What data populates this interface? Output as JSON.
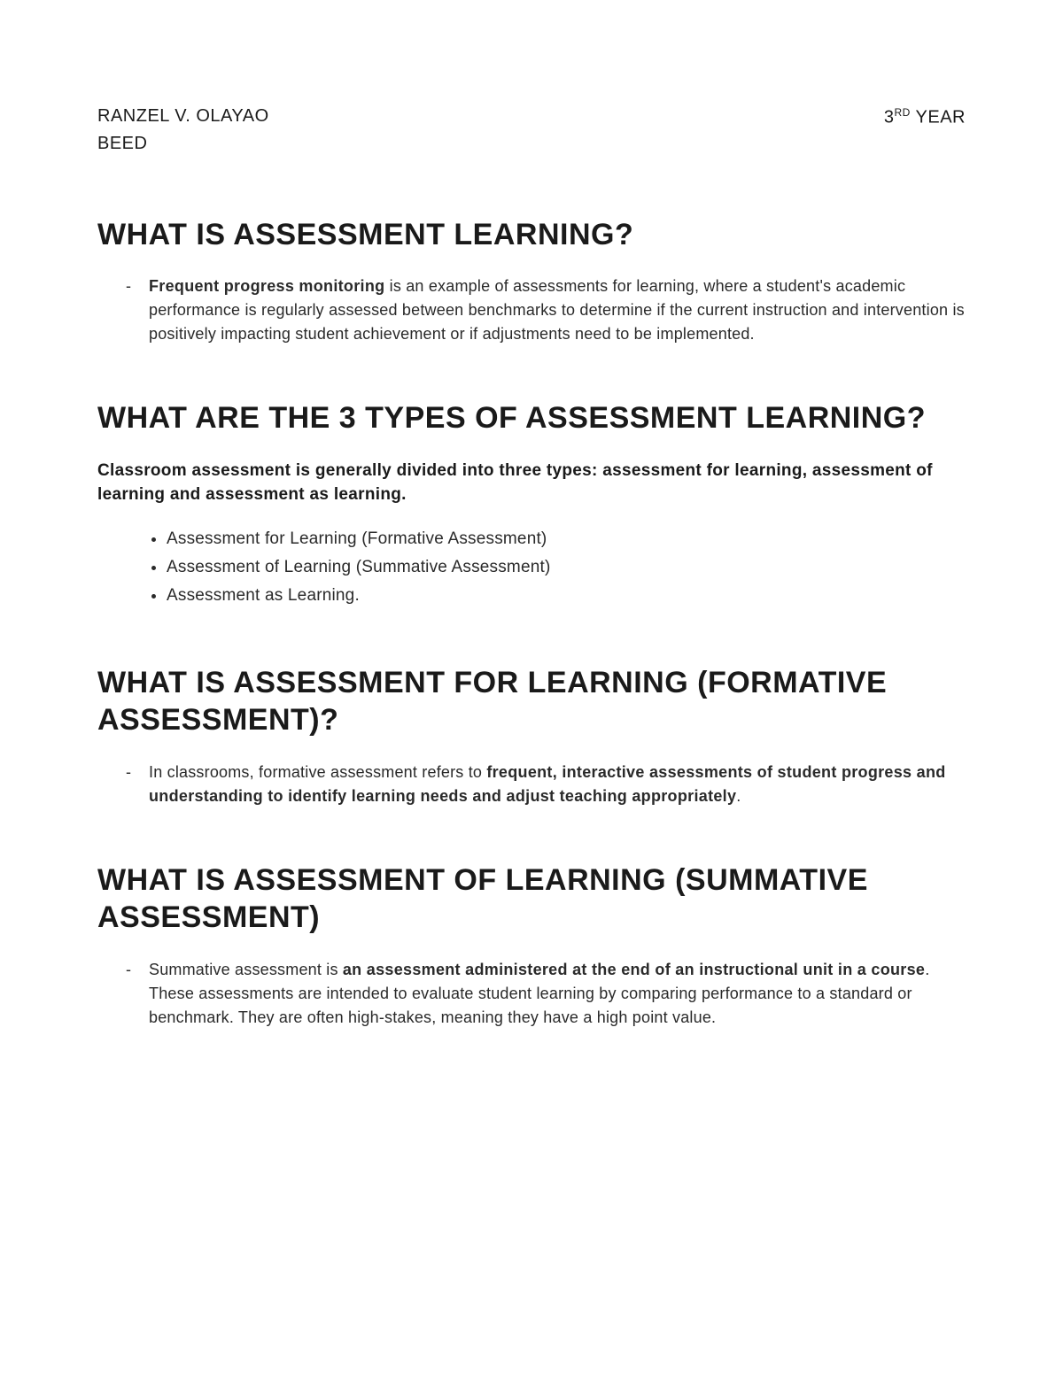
{
  "header": {
    "name": "RANZEL V. OLAYAO",
    "year_prefix": "3",
    "year_suffix": "RD",
    "year_label": " YEAR",
    "program": "BEED"
  },
  "sections": [
    {
      "title": "WHAT IS ASSESSMENT LEARNING?",
      "dash_items": [
        {
          "lead_bold": "Frequent progress monitoring",
          "rest": " is an example of assessments for learning, where a student's academic performance is regularly assessed between benchmarks to determine if the current instruction and intervention is positively impacting student achievement or if adjustments need to be implemented."
        }
      ]
    },
    {
      "title": "WHAT ARE THE 3 TYPES OF ASSESSMENT LEARNING?",
      "intro_bold": "Classroom assessment is generally divided into three types: assessment for learning, assessment of learning and assessment as learning.",
      "bullet_items": [
        "Assessment for Learning (Formative Assessment)",
        "Assessment of Learning (Summative Assessment)",
        "Assessment as Learning."
      ]
    },
    {
      "title": "WHAT IS ASSESSMENT FOR LEARNING (FORMATIVE ASSESSMENT)?",
      "dash_items": [
        {
          "pre": "In classrooms, formative assessment refers to ",
          "mid_bold": "frequent, interactive assessments of student progress and understanding to identify learning needs and adjust teaching appropriately",
          "post": "."
        }
      ]
    },
    {
      "title": "WHAT IS ASSESSMENT OF LEARNING (SUMMATIVE ASSESSMENT)",
      "dash_items": [
        {
          "pre": "Summative assessment is ",
          "mid_bold": "an assessment administered at the end of an instructional unit in a course",
          "post": ". These assessments are intended to evaluate student learning by comparing performance to a standard or benchmark. They are often high-stakes, meaning they have a high point value."
        }
      ]
    }
  ],
  "colors": {
    "text": "#1a1a1a",
    "body": "#2a2a2a",
    "background": "#ffffff"
  }
}
